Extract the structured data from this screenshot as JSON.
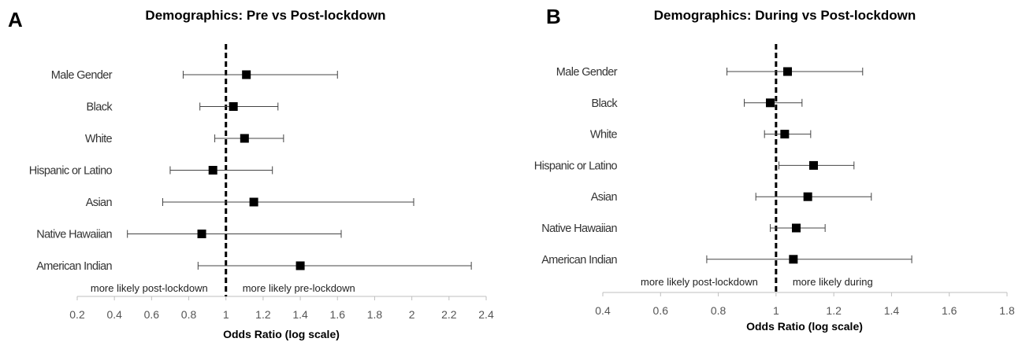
{
  "chart_data": [
    {
      "type": "forest",
      "panel_label": "A",
      "title": "Demographics: Pre vs Post-lockdown",
      "xlabel": "Odds Ratio (log scale)",
      "xlim": [
        0.2,
        2.4
      ],
      "xticks": [
        0.2,
        0.4,
        0.6,
        0.8,
        1,
        1.2,
        1.4,
        1.6,
        1.8,
        2,
        2.2,
        2.4
      ],
      "xtick_labels": [
        "0.2",
        "0.4",
        "0.6",
        "0.8",
        "1",
        "1.2",
        "1.4",
        "1.6",
        "1.8",
        "2",
        "2.2",
        "2.4"
      ],
      "reference_line": 1,
      "annotation_left": "more likely post-lockdown",
      "annotation_right": "more likely pre-lockdown",
      "categories": [
        "Male Gender",
        "Black",
        "White",
        "Hispanic or Latino",
        "Asian",
        "Native Hawaiian",
        "American Indian"
      ],
      "estimate": [
        1.11,
        1.04,
        1.1,
        0.93,
        1.15,
        0.87,
        1.4
      ],
      "ci_low": [
        0.77,
        0.86,
        0.94,
        0.7,
        0.66,
        0.47,
        0.85
      ],
      "ci_high": [
        1.6,
        1.28,
        1.31,
        1.25,
        2.01,
        1.62,
        2.32
      ]
    },
    {
      "type": "forest",
      "panel_label": "B",
      "title": "Demographics: During vs Post-lockdown",
      "xlabel": "Odds Ratio (log scale)",
      "xlim": [
        0.4,
        1.8
      ],
      "xticks": [
        0.4,
        0.6,
        0.8,
        1,
        1.2,
        1.4,
        1.6,
        1.8
      ],
      "xtick_labels": [
        "0.4",
        "0.6",
        "0.8",
        "1",
        "1.2",
        "1.4",
        "1.6",
        "1.8"
      ],
      "reference_line": 1,
      "annotation_left": "more likely post-lockdown",
      "annotation_right": "more likely during",
      "categories": [
        "Male Gender",
        "Black",
        "White",
        "Hispanic or Latino",
        "Asian",
        "Native Hawaiian",
        "American Indian"
      ],
      "estimate": [
        1.04,
        0.98,
        1.03,
        1.13,
        1.11,
        1.07,
        1.06
      ],
      "ci_low": [
        0.83,
        0.89,
        0.96,
        1.01,
        0.93,
        0.98,
        0.76
      ],
      "ci_high": [
        1.3,
        1.09,
        1.12,
        1.27,
        1.33,
        1.17,
        1.47
      ]
    }
  ]
}
